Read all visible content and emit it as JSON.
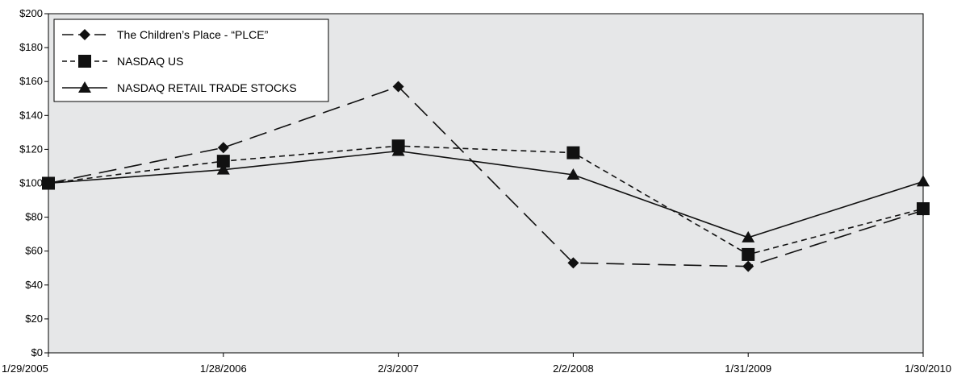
{
  "chart_data": {
    "type": "line",
    "categories": [
      "1/29/2005",
      "1/28/2006",
      "2/3/2007",
      "2/2/2008",
      "1/31/2009",
      "1/30/2010"
    ],
    "ylim": [
      0,
      200
    ],
    "yticks": [
      0,
      20,
      40,
      60,
      80,
      100,
      120,
      140,
      160,
      180,
      200
    ],
    "ytick_labels": [
      "$0",
      "$20",
      "$40",
      "$60",
      "$80",
      "$100",
      "$120",
      "$140",
      "$160",
      "$180",
      "$200"
    ],
    "grid": false,
    "legend_position": "top-left",
    "plot_background": "#e6e7e8",
    "series": [
      {
        "name": "The Children’s Place - “PLCE”",
        "values": [
          100,
          121,
          157,
          53,
          51,
          84
        ],
        "marker": "diamond",
        "dash": "long-dash",
        "color": "#111111"
      },
      {
        "name": "NASDAQ US",
        "values": [
          100,
          113,
          122,
          118,
          58,
          85
        ],
        "marker": "square",
        "dash": "short-dash",
        "color": "#111111"
      },
      {
        "name": "NASDAQ RETAIL TRADE STOCKS",
        "values": [
          100,
          108,
          119,
          105,
          68,
          101
        ],
        "marker": "triangle",
        "dash": "solid",
        "color": "#111111"
      }
    ]
  }
}
